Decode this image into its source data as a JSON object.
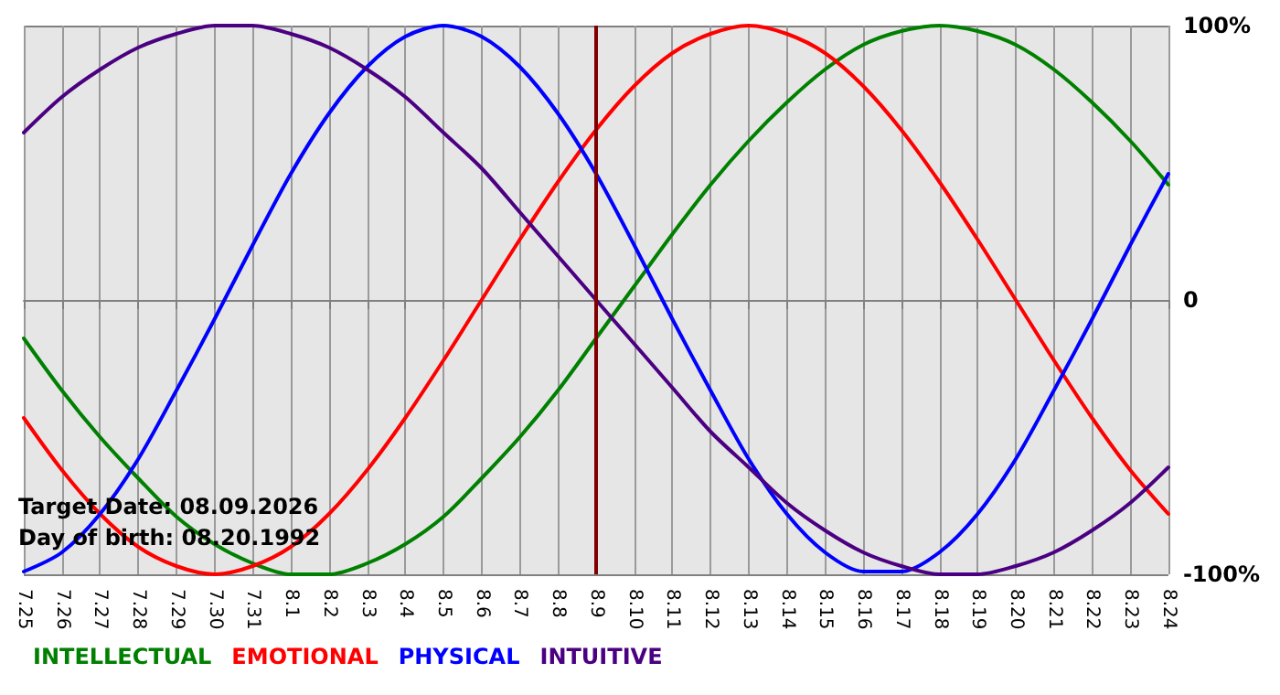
{
  "chart_data": {
    "type": "line",
    "categories": [
      "7.25",
      "7.26",
      "7.27",
      "7.28",
      "7.29",
      "7.30",
      "7.31",
      "8.1",
      "8.2",
      "8.3",
      "8.4",
      "8.5",
      "8.6",
      "8.7",
      "8.8",
      "8.9",
      "8.10",
      "8.11",
      "8.12",
      "8.13",
      "8.14",
      "8.15",
      "8.16",
      "8.17",
      "8.18",
      "8.19",
      "8.20",
      "8.21",
      "8.22",
      "8.23",
      "8.24"
    ],
    "series": [
      {
        "name": "INTELLECTUAL",
        "color": "#008000",
        "values": [
          -14,
          -33,
          -50,
          -65,
          -79,
          -89,
          -96,
          -100,
          -100,
          -96,
          -89,
          -79,
          -65,
          -50,
          -33,
          -14,
          5,
          24,
          42,
          58,
          72,
          84,
          93,
          98,
          100,
          98,
          93,
          84,
          72,
          58,
          42
        ]
      },
      {
        "name": "EMOTIONAL",
        "color": "#ff0000",
        "values": [
          -43,
          -62,
          -78,
          -90,
          -97,
          -100,
          -97,
          -90,
          -78,
          -62,
          -43,
          -22,
          0,
          22,
          43,
          62,
          78,
          90,
          97,
          100,
          97,
          90,
          78,
          62,
          43,
          22,
          0,
          -22,
          -43,
          -62,
          -78
        ]
      },
      {
        "name": "PHYSICAL",
        "color": "#0000ff",
        "values": [
          -99,
          -92,
          -78,
          -58,
          -33,
          -7,
          20,
          46,
          68,
          85,
          96,
          100,
          96,
          85,
          68,
          46,
          20,
          -7,
          -33,
          -58,
          -78,
          -92,
          -99,
          -99,
          -92,
          -78,
          -58,
          -33,
          -7,
          20,
          46
        ]
      },
      {
        "name": "INTUITIVE",
        "color": "#4b0082",
        "values": [
          61,
          74,
          84,
          92,
          97,
          100,
          100,
          97,
          92,
          84,
          74,
          61,
          48,
          32,
          16,
          0,
          -16,
          -32,
          -48,
          -61,
          -74,
          -84,
          -92,
          -97,
          -100,
          -100,
          -97,
          -92,
          -84,
          -74,
          -61
        ]
      }
    ],
    "ylim": [
      -100,
      100
    ],
    "yticks": [
      {
        "value": 100,
        "label": "100%"
      },
      0,
      {
        "value": -100,
        "label": "-100%"
      }
    ],
    "grid": true,
    "legend": "bottom left",
    "marker": "none",
    "line_style": "solid",
    "ref_lines": [
      {
        "axis": "x",
        "value": "8.9",
        "color": "#800000"
      }
    ],
    "annotations": [
      "Target Date: 08.09.2026",
      "Day of birth: 08.20.1992"
    ]
  }
}
